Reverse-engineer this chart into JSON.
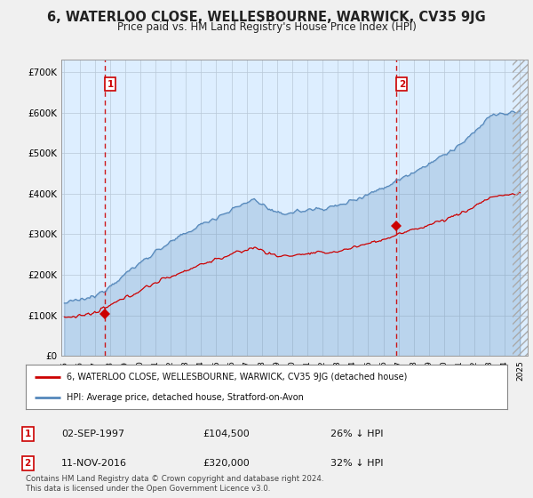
{
  "title": "6, WATERLOO CLOSE, WELLESBOURNE, WARWICK, CV35 9JG",
  "subtitle": "Price paid vs. HM Land Registry's House Price Index (HPI)",
  "legend_label_red": "6, WATERLOO CLOSE, WELLESBOURNE, WARWICK, CV35 9JG (detached house)",
  "legend_label_blue": "HPI: Average price, detached house, Stratford-on-Avon",
  "marker1_date": "02-SEP-1997",
  "marker1_price": 104500,
  "marker1_label": "26% ↓ HPI",
  "marker2_date": "11-NOV-2016",
  "marker2_price": 320000,
  "marker2_label": "32% ↓ HPI",
  "footnote": "Contains HM Land Registry data © Crown copyright and database right 2024.\nThis data is licensed under the Open Government Licence v3.0.",
  "ylim": [
    0,
    730000
  ],
  "yticks": [
    0,
    100000,
    200000,
    300000,
    400000,
    500000,
    600000,
    700000
  ],
  "ytick_labels": [
    "£0",
    "£100K",
    "£200K",
    "£300K",
    "£400K",
    "£500K",
    "£600K",
    "£700K"
  ],
  "background_color": "#f0f0f0",
  "plot_bg_color": "#ddeeff",
  "plot_bg_hatch_color": "#c8d8e8",
  "red_color": "#cc0000",
  "blue_color": "#5588bb",
  "marker1_x": 1997.67,
  "marker2_x": 2016.85,
  "xlim_left": 1994.8,
  "xlim_right": 2025.5
}
